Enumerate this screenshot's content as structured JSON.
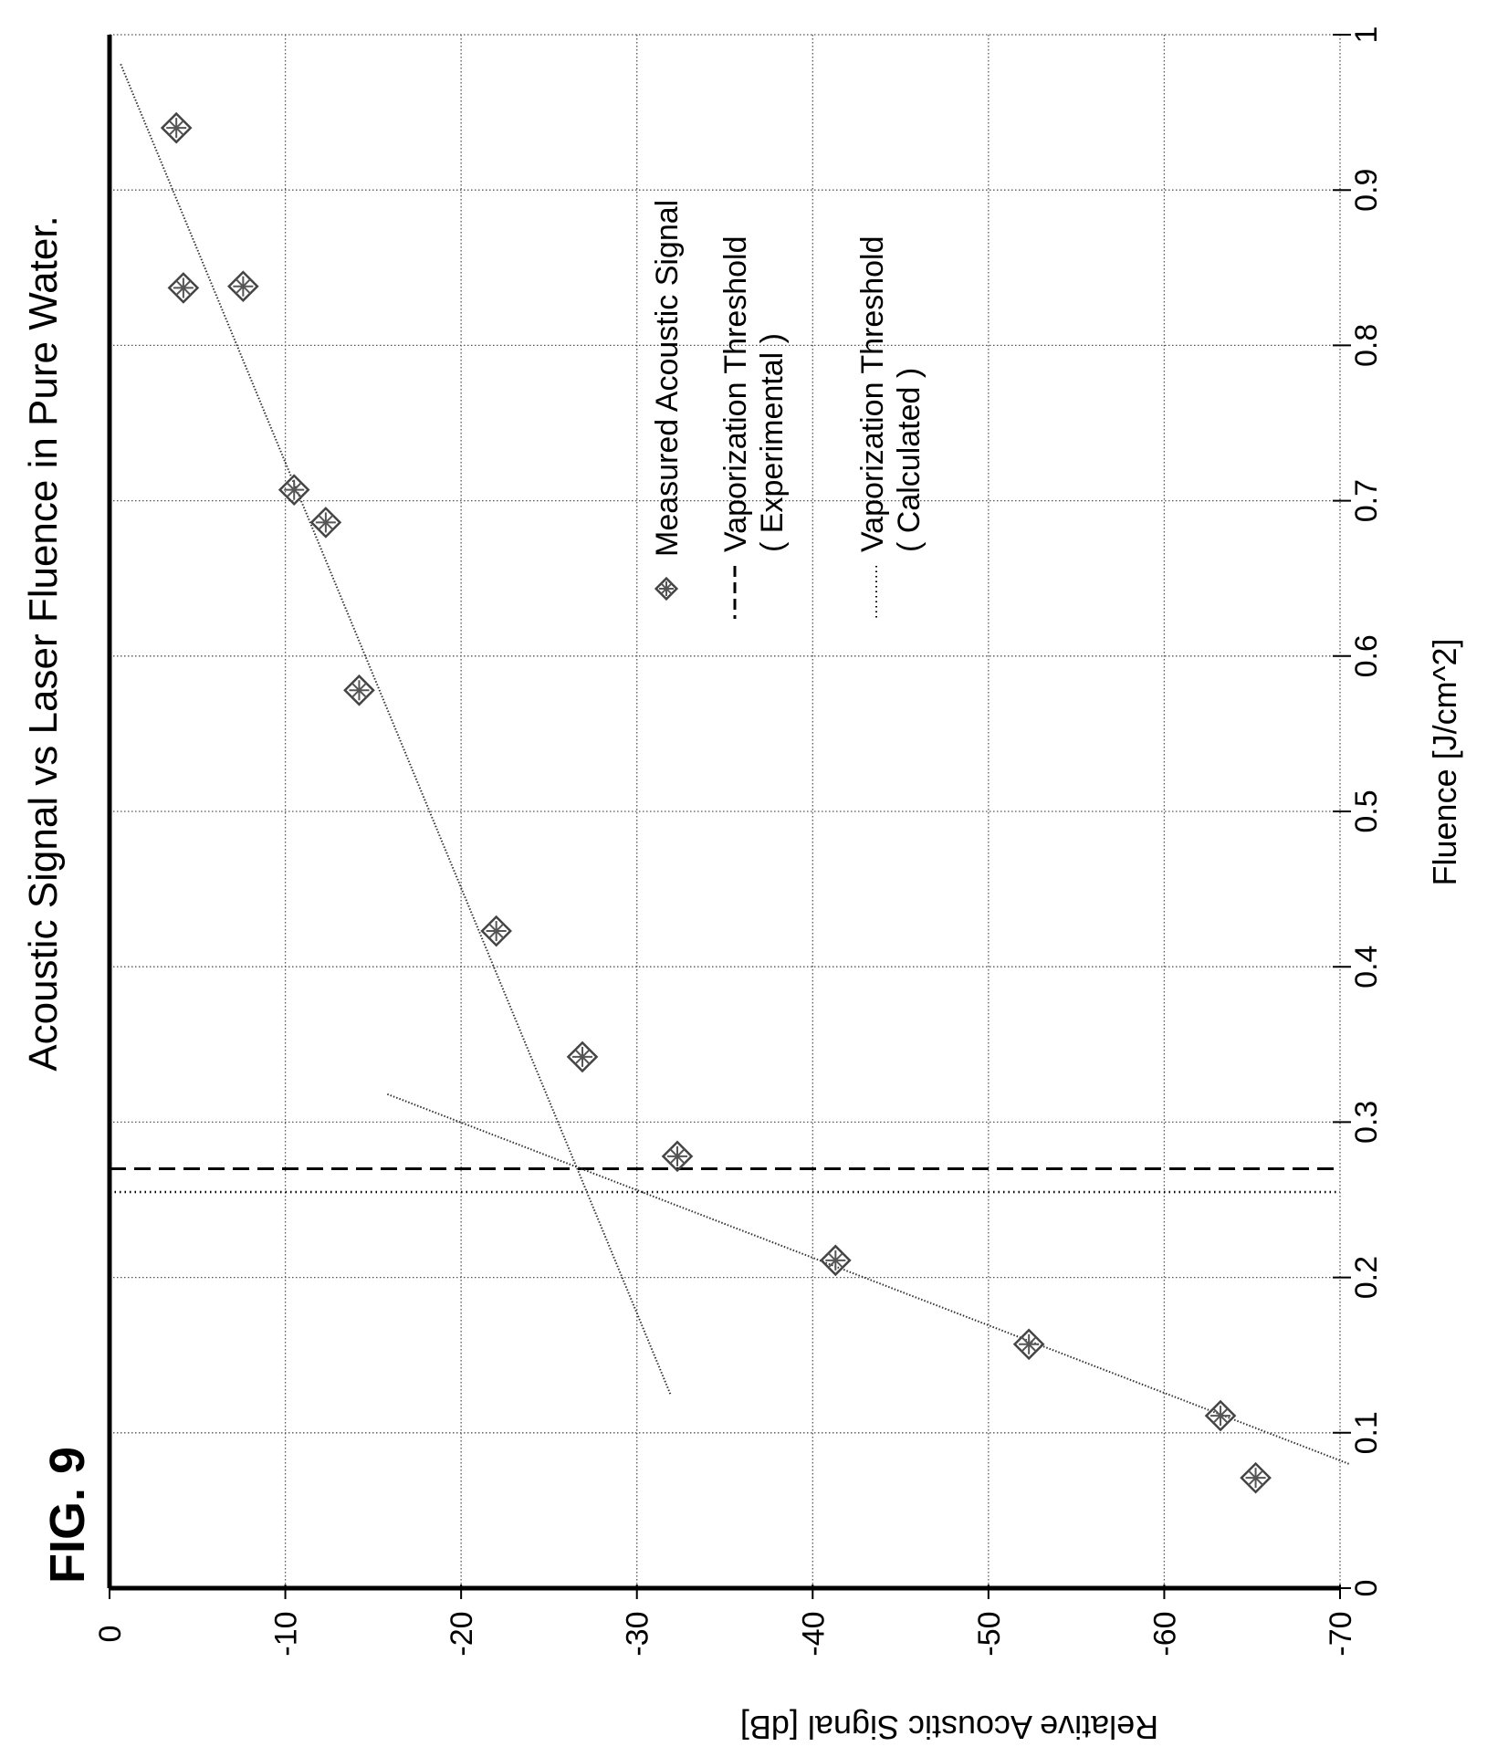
{
  "figure_label": "FIG. 9",
  "chart_data": {
    "type": "scatter",
    "title": "Acoustic Signal vs Laser Fluence in Pure Water.",
    "xlabel": "Fluence [J/cm^2]",
    "ylabel": "Relative Acoustic Signal [dB]",
    "xlim": [
      0,
      1
    ],
    "ylim": [
      -70,
      0
    ],
    "grid": true,
    "legend_position": "top-right",
    "x_ticks": [
      "0",
      "0.1",
      "0.2",
      "0.3",
      "0.4",
      "0.5",
      "0.6",
      "0.7",
      "0.8",
      "0.9",
      "1"
    ],
    "y_ticks": [
      "0",
      "-10",
      "-20",
      "-30",
      "-40",
      "-50",
      "-60",
      "-70"
    ],
    "series": [
      {
        "name": "Measured Acoustic Signal",
        "style": "markers",
        "x": [
          0.071,
          0.111,
          0.157,
          0.211,
          0.278,
          0.342,
          0.423,
          0.578,
          0.686,
          0.707,
          0.837,
          0.838,
          0.94
        ],
        "y": [
          -65.2,
          -63.2,
          -52.3,
          -41.3,
          -32.3,
          -26.9,
          -22.0,
          -14.2,
          -12.3,
          -10.5,
          -4.2,
          -7.6,
          -3.8
        ]
      }
    ],
    "fit_lines": [
      {
        "x": [
          0.08,
          0.318
        ],
        "y": [
          -70.5,
          -15.8
        ]
      },
      {
        "x": [
          0.125,
          0.982
        ],
        "y": [
          -31.9,
          -0.6
        ]
      }
    ],
    "thresholds": [
      {
        "name": "Vaporization Threshold",
        "sub": "( Experimental )",
        "x": 0.27,
        "style": "dashed"
      },
      {
        "name": "Vaporization Threshold",
        "sub": "( Calculated )",
        "x": 0.255,
        "style": "dotted"
      }
    ]
  }
}
